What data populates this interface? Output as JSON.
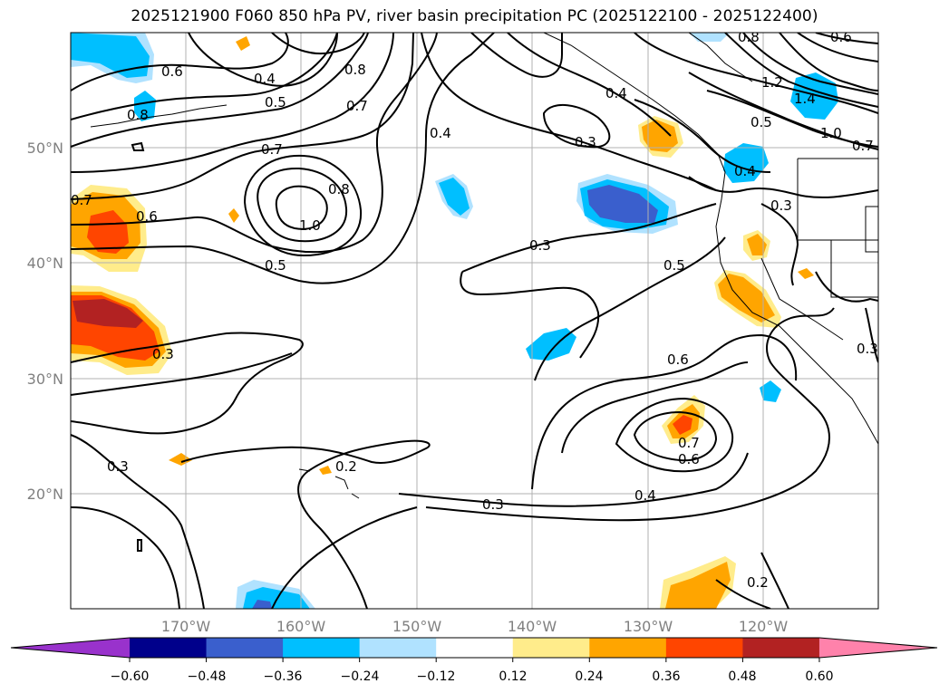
{
  "title": "2025121900 F060 850 hPa PV, river basin precipitation PC (2025122100 - 2025122400)",
  "lat_ticks": [
    "50°N",
    "40°N",
    "30°N",
    "20°N"
  ],
  "lon_ticks": [
    "170°W",
    "160°W",
    "150°W",
    "140°W",
    "130°W",
    "120°W"
  ],
  "contour_labels": {
    "c06a": "0.6",
    "c04a": "0.4",
    "c05a": "0.5",
    "c07a": "0.7",
    "c08a": "0.8",
    "c04b": "0.4",
    "c06b": "0.6",
    "c07b": "0.7",
    "c08b": "0.8",
    "c10a": "1.0",
    "c05b": "0.5",
    "c07c": "0.7",
    "c06c": "0.6",
    "c03a": "0.3",
    "c03b": "0.3",
    "c05c": "0.5",
    "c06d": "0.6",
    "c06e": "0.6",
    "c04c": "0.4",
    "c03c": "0.3",
    "c02a": "0.2",
    "c03d": "0.3",
    "c02b": "0.2",
    "c03e": "0.3",
    "c08c": "0.8",
    "c08d": "0.8",
    "c12": "1.2",
    "c14": "1.4",
    "c10b": "1.0",
    "c07d": "0.7",
    "c05d": "0.5",
    "c04d": "0.4",
    "c03f": "0.3",
    "c04e": "0.4",
    "c03g": "0.3",
    "c07e": "0.7"
  },
  "colorbar": {
    "colors": [
      "#9932cc",
      "#00008b",
      "#3a5fcd",
      "#00bfff",
      "#b0e2ff",
      "#ffffff",
      "#ffec8b",
      "#ffa500",
      "#ff4500",
      "#b22222",
      "#ff82ab"
    ],
    "labels": [
      "−0.60",
      "−0.48",
      "−0.36",
      "−0.24",
      "−0.12",
      "0.12",
      "0.24",
      "0.36",
      "0.48",
      "0.60"
    ]
  }
}
